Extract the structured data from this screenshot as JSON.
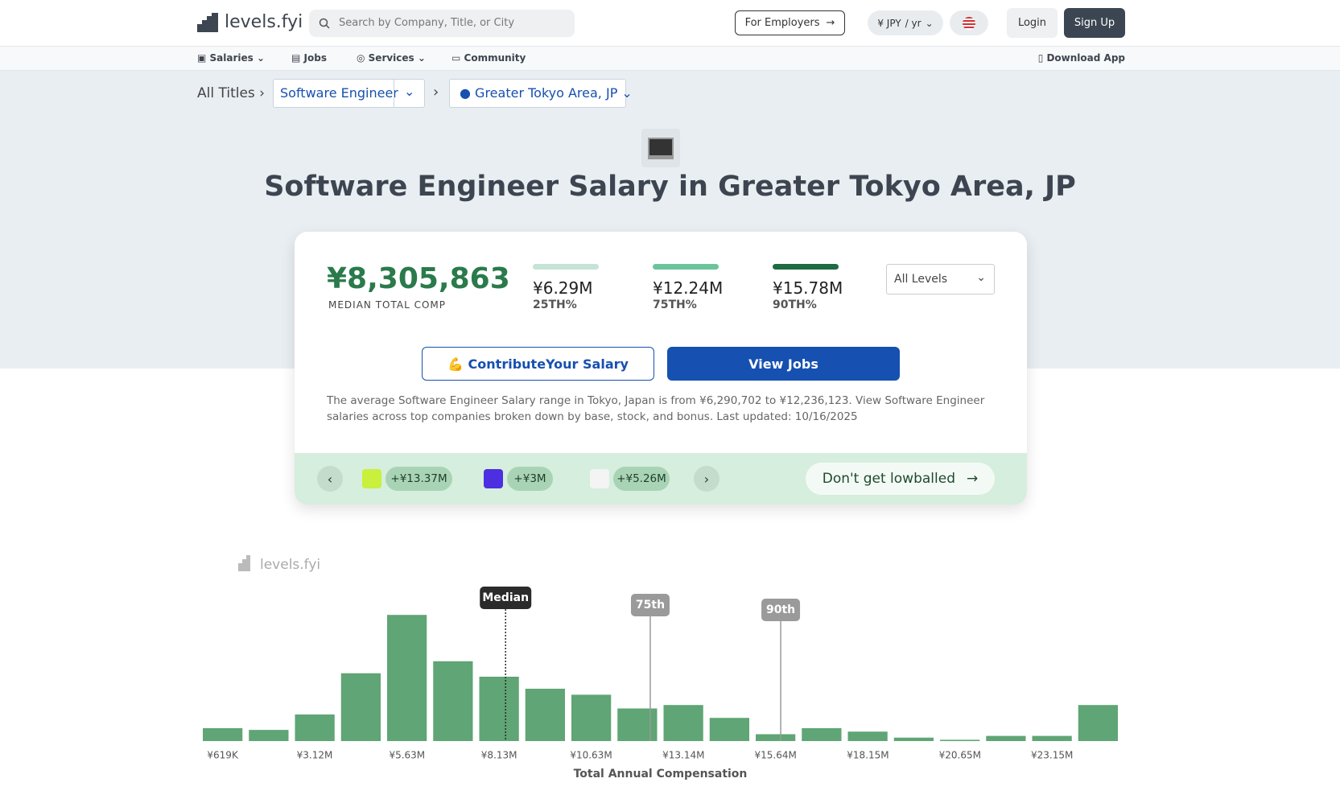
{
  "header": {
    "logo": "levels.fyi",
    "search_placeholder": "Search by Company, Title, or City",
    "for_employers": "For Employers",
    "currency": "¥ JPY",
    "period": "/ yr",
    "login": "Login",
    "signup": "Sign Up"
  },
  "nav": {
    "items": [
      "Salaries",
      "Jobs",
      "Services",
      "Community"
    ],
    "download": "Download App"
  },
  "breadcrumb": {
    "root": "All Titles",
    "title": "Software Engineer",
    "location": "Greater Tokyo Area, JP"
  },
  "page_title": "Software Engineer Salary in Greater Tokyo Area, JP",
  "summary": {
    "median": "¥8,305,863",
    "median_label": "MEDIAN TOTAL COMP",
    "percentiles": [
      {
        "value": "¥6.29M",
        "label": "25TH%",
        "color": "#c5e4d5"
      },
      {
        "value": "¥12.24M",
        "label": "75TH%",
        "color": "#6cc49b"
      },
      {
        "value": "¥15.78M",
        "label": "90TH%",
        "color": "#1f6b43"
      }
    ],
    "level_select": "All Levels",
    "contribute": "💪 ContributeYour Salary",
    "view_jobs": "View Jobs",
    "description": "The average Software Engineer Salary range in Tokyo, Japan is from ¥6,290,702 to ¥12,236,123. View Software Engineer salaries across top companies broken down by base, stock, and bonus. Last updated: 10/16/2025",
    "offers": [
      "+¥13.37M",
      "+¥3M",
      "+¥5.26M"
    ],
    "lowball": "Don't get lowballed"
  },
  "chart_data": {
    "type": "bar",
    "watermark": "levels.fyi",
    "xlabel": "Total Annual Compensation",
    "color": "#5fa575",
    "values": [
      15,
      13,
      31,
      79,
      147,
      93,
      75,
      61,
      54,
      38,
      42,
      27,
      8,
      15,
      11,
      4,
      1.5,
      6,
      6,
      42
    ],
    "xlim": [
      -7000,
      25027000
    ],
    "ylim": [
      0,
      150
    ],
    "xticks": [
      {
        "value": 619000,
        "label": "¥619K"
      },
      {
        "value": 3120000,
        "label": "¥3.12M"
      },
      {
        "value": 5630000,
        "label": "¥5.63M"
      },
      {
        "value": 8130000,
        "label": "¥8.13M"
      },
      {
        "value": 10630000,
        "label": "¥10.63M"
      },
      {
        "value": 13140000,
        "label": "¥13.14M"
      },
      {
        "value": 15640000,
        "label": "¥15.64M"
      },
      {
        "value": 18150000,
        "label": "¥18.15M"
      },
      {
        "value": 20650000,
        "label": "¥20.65M"
      },
      {
        "value": 23150000,
        "label": "¥23.15M"
      }
    ],
    "markers": [
      {
        "label": "Median",
        "value": 8305863,
        "color": "#2b2b2b"
      },
      {
        "label": "75th",
        "value": 12236123,
        "color": "#9a9a9a"
      },
      {
        "label": "90th",
        "value": 15780000,
        "color": "#9a9a9a"
      }
    ]
  }
}
